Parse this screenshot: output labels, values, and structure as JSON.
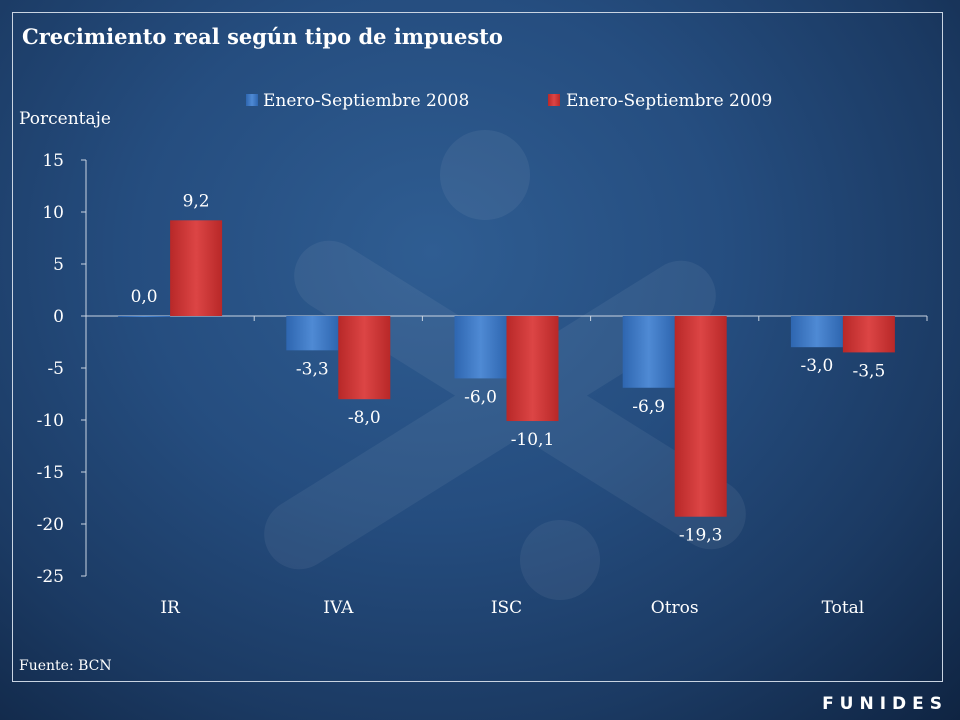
{
  "chart_data": {
    "type": "bar",
    "title": "Crecimiento real según tipo de impuesto",
    "ylabel": "Porcentaje",
    "xlabel": "",
    "categories": [
      "IR",
      "IVA",
      "ISC",
      "Otros",
      "Total"
    ],
    "series": [
      {
        "name": "Enero-Septiembre 2008",
        "color": "#3b78c6",
        "values": [
          0.0,
          -3.3,
          -6.0,
          -6.9,
          -3.0
        ],
        "labels": [
          "0,0",
          "-3,3",
          "-6,0",
          "-6,9",
          "-3,0"
        ]
      },
      {
        "name": "Enero-Septiembre 2009",
        "color": "#cc3333",
        "values": [
          9.2,
          -8.0,
          -10.1,
          -19.3,
          -3.5
        ],
        "labels": [
          "9,2",
          "-8,0",
          "-10,1",
          "-19,3",
          "-3,5"
        ]
      }
    ],
    "ylim": [
      -25,
      15
    ],
    "yticks": [
      15,
      10,
      5,
      0,
      -5,
      -10,
      -15,
      -20,
      -25
    ],
    "ytick_labels": [
      "15",
      "10",
      "5",
      "0",
      "-5",
      "-10",
      "-15",
      "-20",
      "-25"
    ],
    "legend_position": "top",
    "grid": false
  },
  "source": "Fuente: BCN",
  "logo": "FUNIDES"
}
